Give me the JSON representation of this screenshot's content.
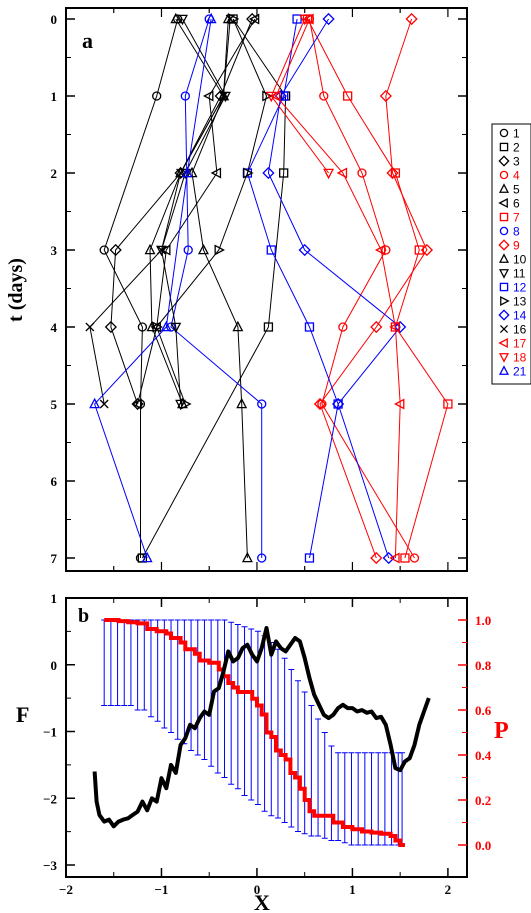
{
  "chart_data": [
    {
      "panel": "a",
      "type": "line",
      "ylabel": "t (days)",
      "xlim": [
        -2.0,
        2.2
      ],
      "ylim": [
        0,
        7
      ],
      "y_inverted": true,
      "y_ticks": [
        0,
        1,
        2,
        3,
        4,
        5,
        6,
        7
      ],
      "grid": false,
      "legend_placement": "right-outside",
      "colors": {
        "black": "#000000",
        "red": "#ff0000",
        "blue": "#0000ff"
      },
      "series": [
        {
          "name": "1",
          "color": "#000000",
          "marker": "circle",
          "points": [
            [
              -0.83,
              0
            ],
            [
              -1.05,
              1
            ],
            [
              -1.6,
              3
            ],
            [
              -1.2,
              4
            ],
            [
              -1.22,
              5
            ],
            [
              -1.22,
              7
            ]
          ]
        },
        {
          "name": "2",
          "color": "#000000",
          "marker": "square",
          "points": [
            [
              -0.25,
              0
            ],
            [
              0.3,
              1
            ],
            [
              0.28,
              2
            ],
            [
              0.12,
              4
            ],
            [
              -1.2,
              7
            ]
          ]
        },
        {
          "name": "3",
          "color": "#000000",
          "marker": "diamond",
          "points": [
            [
              -0.05,
              0
            ],
            [
              -0.38,
              1
            ],
            [
              -0.8,
              2
            ],
            [
              -1.48,
              3
            ],
            [
              -1.53,
              4
            ],
            [
              -1.25,
              5
            ]
          ]
        },
        {
          "name": "4",
          "color": "#ff0000",
          "marker": "circle",
          "points": [
            [
              0.55,
              0
            ],
            [
              0.7,
              1
            ],
            [
              1.1,
              2
            ],
            [
              1.35,
              3
            ],
            [
              0.9,
              4
            ],
            [
              0.68,
              5
            ],
            [
              1.65,
              7
            ]
          ]
        },
        {
          "name": "5",
          "color": "#000000",
          "marker": "triangle-up",
          "points": [
            [
              -0.85,
              0
            ],
            [
              -0.35,
              1
            ],
            [
              -0.68,
              2
            ],
            [
              -0.56,
              3
            ],
            [
              -0.2,
              4
            ],
            [
              -0.16,
              5
            ],
            [
              -0.1,
              7
            ]
          ]
        },
        {
          "name": "6",
          "color": "#000000",
          "marker": "triangle-left",
          "points": [
            [
              -0.02,
              0
            ],
            [
              -0.5,
              1
            ],
            [
              -0.42,
              2
            ],
            [
              -0.95,
              3
            ],
            [
              -1.05,
              4
            ],
            [
              -1.25,
              5
            ]
          ]
        },
        {
          "name": "7",
          "color": "#ff0000",
          "marker": "square",
          "points": [
            [
              0.53,
              0
            ],
            [
              0.95,
              1
            ],
            [
              1.45,
              2
            ],
            [
              1.7,
              3
            ],
            [
              1.45,
              4
            ],
            [
              2.0,
              5
            ],
            [
              1.55,
              7
            ]
          ]
        },
        {
          "name": "8",
          "color": "#0000ff",
          "marker": "circle",
          "points": [
            [
              -0.5,
              0
            ],
            [
              -0.75,
              1
            ],
            [
              -0.72,
              3
            ],
            [
              -0.9,
              4
            ],
            [
              0.05,
              5
            ],
            [
              0.05,
              7
            ]
          ]
        },
        {
          "name": "9",
          "color": "#ff0000",
          "marker": "diamond",
          "points": [
            [
              1.62,
              0
            ],
            [
              1.35,
              1
            ],
            [
              1.42,
              2
            ],
            [
              1.78,
              3
            ],
            [
              1.25,
              4
            ],
            [
              0.66,
              5
            ],
            [
              1.25,
              7
            ]
          ]
        },
        {
          "name": "10",
          "color": "#000000",
          "marker": "triangle-up",
          "points": [
            [
              -0.3,
              0
            ],
            [
              -0.35,
              1
            ],
            [
              -0.8,
              2
            ],
            [
              -1.12,
              3
            ],
            [
              -1.1,
              4
            ],
            [
              -0.78,
              5
            ]
          ]
        },
        {
          "name": "11",
          "color": "#000000",
          "marker": "triangle-down",
          "points": [
            [
              -0.78,
              0
            ],
            [
              -0.33,
              1
            ],
            [
              -0.75,
              2
            ],
            [
              -1.0,
              3
            ],
            [
              -0.85,
              4
            ],
            [
              -0.8,
              5
            ]
          ]
        },
        {
          "name": "12",
          "color": "#0000ff",
          "marker": "square",
          "points": [
            [
              0.42,
              0
            ],
            [
              0.28,
              1
            ],
            [
              -0.1,
              2
            ],
            [
              0.15,
              3
            ],
            [
              0.55,
              4
            ],
            [
              0.85,
              5
            ],
            [
              0.55,
              7
            ]
          ]
        },
        {
          "name": "13",
          "color": "#000000",
          "marker": "triangle-right",
          "points": [
            [
              -0.25,
              0
            ],
            [
              0.1,
              1
            ],
            [
              -0.1,
              2
            ],
            [
              -0.4,
              3
            ],
            [
              -1.05,
              4
            ],
            [
              -0.75,
              5
            ]
          ]
        },
        {
          "name": "14",
          "color": "#0000ff",
          "marker": "diamond",
          "points": [
            [
              0.75,
              0
            ],
            [
              0.25,
              1
            ],
            [
              0.12,
              2
            ],
            [
              0.5,
              3
            ],
            [
              1.5,
              4
            ],
            [
              0.85,
              5
            ],
            [
              1.38,
              7
            ]
          ]
        },
        {
          "name": "16",
          "color": "#000000",
          "marker": "x",
          "points": [
            [
              -0.28,
              0
            ],
            [
              -0.35,
              1
            ],
            [
              -0.8,
              2
            ],
            [
              -1.0,
              3
            ],
            [
              -1.75,
              4
            ],
            [
              -1.6,
              5
            ]
          ]
        },
        {
          "name": "17",
          "color": "#ff0000",
          "marker": "triangle-left",
          "points": [
            [
              0.55,
              0
            ],
            [
              0.2,
              1
            ],
            [
              0.9,
              2
            ],
            [
              1.3,
              3
            ],
            [
              1.45,
              4
            ],
            [
              1.5,
              5
            ],
            [
              1.45,
              7
            ]
          ]
        },
        {
          "name": "18",
          "color": "#ff0000",
          "marker": "triangle-down",
          "points": [
            [
              0.5,
              0
            ],
            [
              0.15,
              1
            ],
            [
              0.75,
              2
            ]
          ]
        },
        {
          "name": "21",
          "color": "#0000ff",
          "marker": "triangle-up",
          "points": [
            [
              -0.48,
              0
            ],
            [
              -0.73,
              2
            ],
            [
              -0.95,
              4
            ],
            [
              -1.7,
              5
            ],
            [
              -1.15,
              7
            ]
          ]
        }
      ]
    },
    {
      "panel": "b",
      "type": "line",
      "xlabel": "X",
      "ylabel": "F",
      "ylabel_right": "P",
      "xlim": [
        -2.0,
        2.2
      ],
      "ylim": [
        -3,
        1
      ],
      "ylim_right": [
        -0.03,
        1.07
      ],
      "x_ticks": [
        -2,
        -1,
        0,
        1,
        2
      ],
      "y_ticks": [
        -3,
        -2,
        -1,
        0,
        1
      ],
      "y_ticks_right": [
        "0.0",
        "0.2",
        "0.4",
        "0.6",
        "0.8",
        "1.0"
      ],
      "grid": false,
      "colors": {
        "F": "#000000",
        "P": "#ff0000",
        "error_bars": "#0000ff"
      },
      "F": {
        "x": [
          -1.7,
          -1.68,
          -1.65,
          -1.6,
          -1.55,
          -1.5,
          -1.45,
          -1.4,
          -1.35,
          -1.3,
          -1.25,
          -1.2,
          -1.15,
          -1.1,
          -1.05,
          -1.0,
          -0.95,
          -0.9,
          -0.85,
          -0.8,
          -0.75,
          -0.7,
          -0.65,
          -0.6,
          -0.55,
          -0.5,
          -0.45,
          -0.4,
          -0.35,
          -0.3,
          -0.25,
          -0.2,
          -0.15,
          -0.1,
          -0.05,
          0.0,
          0.05,
          0.1,
          0.15,
          0.2,
          0.25,
          0.3,
          0.35,
          0.4,
          0.45,
          0.5,
          0.55,
          0.6,
          0.65,
          0.7,
          0.75,
          0.8,
          0.85,
          0.9,
          0.95,
          1.0,
          1.05,
          1.1,
          1.15,
          1.2,
          1.25,
          1.3,
          1.35,
          1.4,
          1.45,
          1.5,
          1.55,
          1.6,
          1.65,
          1.7,
          1.75,
          1.8
        ],
        "y": [
          -1.6,
          -2.05,
          -2.25,
          -2.35,
          -2.32,
          -2.42,
          -2.35,
          -2.32,
          -2.3,
          -2.25,
          -2.2,
          -2.05,
          -2.18,
          -2.0,
          -2.05,
          -1.7,
          -1.85,
          -1.5,
          -1.62,
          -1.2,
          -1.1,
          -0.9,
          -0.95,
          -0.8,
          -0.7,
          -0.75,
          -0.4,
          -0.35,
          -0.1,
          0.2,
          0.05,
          0.1,
          0.25,
          0.3,
          0.15,
          0.05,
          0.25,
          0.55,
          0.15,
          0.35,
          0.25,
          0.2,
          0.3,
          0.4,
          0.35,
          0.1,
          -0.2,
          -0.45,
          -0.6,
          -0.75,
          -0.8,
          -0.75,
          -0.65,
          -0.6,
          -0.65,
          -0.65,
          -0.7,
          -0.68,
          -0.72,
          -0.7,
          -0.8,
          -0.78,
          -0.9,
          -1.2,
          -1.55,
          -1.58,
          -1.45,
          -1.4,
          -1.2,
          -0.9,
          -0.7,
          -0.5
        ]
      },
      "P": {
        "x": [
          -1.6,
          -1.55,
          -1.45,
          -1.35,
          -1.25,
          -1.15,
          -1.1,
          -1.05,
          -0.95,
          -0.9,
          -0.8,
          -0.75,
          -0.65,
          -0.6,
          -0.55,
          -0.5,
          -0.4,
          -0.35,
          -0.3,
          -0.25,
          -0.2,
          -0.1,
          -0.05,
          0.0,
          0.05,
          0.1,
          0.15,
          0.2,
          0.25,
          0.3,
          0.35,
          0.4,
          0.45,
          0.5,
          0.55,
          0.6,
          0.7,
          0.8,
          0.9,
          1.0,
          1.1,
          1.2,
          1.3,
          1.4,
          1.45,
          1.5,
          1.55
        ],
        "y": [
          1.0,
          1.0,
          0.995,
          0.99,
          0.985,
          0.96,
          0.96,
          0.95,
          0.94,
          0.92,
          0.9,
          0.87,
          0.85,
          0.82,
          0.82,
          0.81,
          0.78,
          0.75,
          0.72,
          0.7,
          0.68,
          0.68,
          0.65,
          0.62,
          0.58,
          0.5,
          0.48,
          0.42,
          0.4,
          0.38,
          0.32,
          0.3,
          0.25,
          0.2,
          0.15,
          0.13,
          0.13,
          0.1,
          0.08,
          0.07,
          0.06,
          0.055,
          0.05,
          0.04,
          0.02,
          0.0,
          0.0
        ]
      },
      "error_bars": {
        "x": [
          -1.6,
          -1.53,
          -1.46,
          -1.39,
          -1.32,
          -1.25,
          -1.18,
          -1.11,
          -1.04,
          -0.97,
          -0.9,
          -0.83,
          -0.76,
          -0.69,
          -0.62,
          -0.55,
          -0.48,
          -0.41,
          -0.34,
          -0.27,
          -0.2,
          -0.13,
          -0.06,
          0.01,
          0.08,
          0.15,
          0.22,
          0.29,
          0.36,
          0.43,
          0.5,
          0.57,
          0.64,
          0.71,
          0.78,
          0.85,
          0.92,
          0.99,
          1.06,
          1.13,
          1.2,
          1.27,
          1.34,
          1.41,
          1.48,
          1.52
        ],
        "low": [
          0.62,
          0.62,
          0.62,
          0.62,
          0.62,
          0.6,
          0.6,
          0.57,
          0.55,
          0.52,
          0.5,
          0.47,
          0.45,
          0.42,
          0.4,
          0.38,
          0.35,
          0.32,
          0.3,
          0.27,
          0.25,
          0.22,
          0.2,
          0.18,
          0.15,
          0.13,
          0.12,
          0.1,
          0.08,
          0.06,
          0.05,
          0.04,
          0.04,
          0.03,
          0.02,
          0.02,
          0.01,
          0.0,
          0.0,
          0.0,
          0.0,
          0.0,
          0.0,
          0.0,
          0.0,
          0.0
        ],
        "high": [
          1.0,
          1.0,
          1.0,
          1.0,
          1.0,
          1.0,
          1.0,
          1.0,
          1.0,
          1.0,
          1.0,
          1.0,
          1.0,
          1.0,
          1.0,
          1.0,
          1.0,
          1.0,
          1.0,
          0.99,
          0.98,
          0.97,
          0.96,
          0.95,
          0.93,
          0.9,
          0.87,
          0.83,
          0.78,
          0.73,
          0.68,
          0.62,
          0.56,
          0.5,
          0.44,
          0.41,
          0.41,
          0.41,
          0.41,
          0.41,
          0.41,
          0.41,
          0.41,
          0.41,
          0.41,
          0.41
        ]
      }
    }
  ],
  "panel_a": {
    "label": "a",
    "ylabel": "t (days)",
    "y_tick_labels": [
      "0",
      "1",
      "2",
      "3",
      "4",
      "5",
      "6",
      "7"
    ]
  },
  "panel_b": {
    "label": "b",
    "xlabel": "X",
    "ylabel_left": "F",
    "ylabel_right": "P",
    "x_tick_labels": [
      "−2",
      "−1",
      "0",
      "1",
      "2"
    ],
    "y_tick_labels_left": [
      "−3",
      "−2",
      "−1",
      "0",
      "1"
    ],
    "y_tick_labels_right": [
      "0.0",
      "0.2",
      "0.4",
      "0.6",
      "0.8",
      "1.0"
    ]
  }
}
